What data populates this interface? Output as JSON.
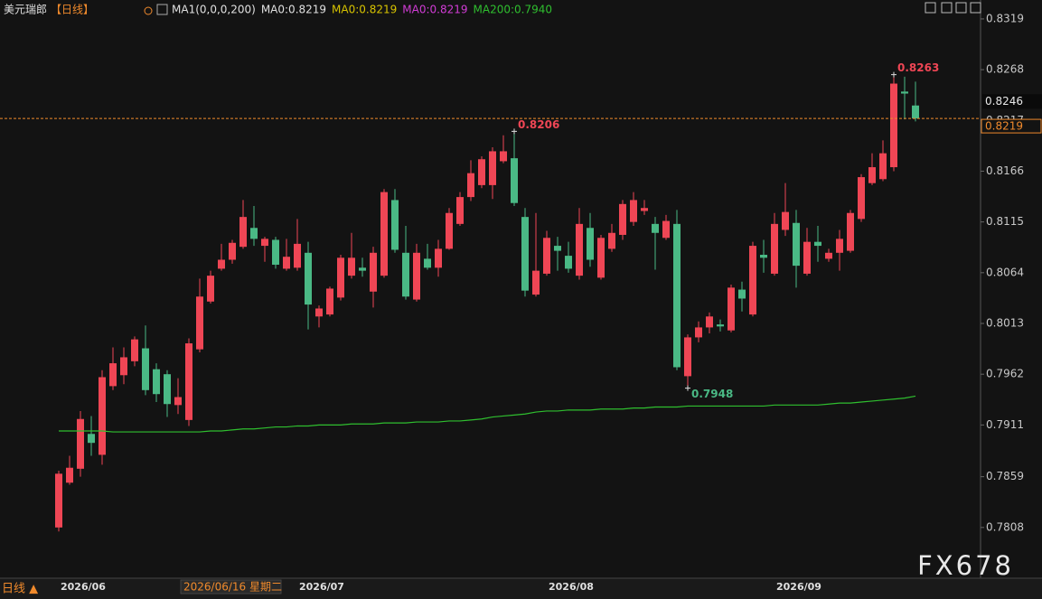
{
  "chart_data": {
    "type": "candlestick",
    "title": "美元瑞郎",
    "period": "【日线】",
    "legend": [
      {
        "text": "MA1(0,0,0,200)",
        "color": "#e0e0e0"
      },
      {
        "text": "MA0:0.8219",
        "color": "#e0e0e0"
      },
      {
        "text": "MA0:0.8219",
        "color": "#d8c400"
      },
      {
        "text": "MA0:0.8219",
        "color": "#d23cd6"
      }
    ],
    "categories": [
      "2026/06",
      null,
      null,
      null,
      null,
      null,
      null,
      null,
      null,
      null,
      null,
      null,
      null,
      null,
      null,
      null,
      null,
      null,
      null,
      null,
      null,
      null,
      "2026/07",
      null,
      null,
      null,
      null,
      null,
      null,
      null,
      null,
      null,
      null,
      null,
      null,
      null,
      null,
      null,
      null,
      null,
      null,
      null,
      null,
      null,
      null,
      "2026/08",
      null,
      null,
      null,
      null,
      null,
      null,
      null,
      null,
      null,
      null,
      null,
      null,
      null,
      null,
      null,
      null,
      null,
      null,
      null,
      null,
      "2026/09",
      null,
      null,
      null,
      null,
      null,
      null,
      null,
      null,
      null,
      null,
      null,
      null,
      null
    ],
    "open": [
      0.7808,
      0.7853,
      0.7867,
      0.7902,
      0.7881,
      0.795,
      0.7961,
      0.7975,
      0.7988,
      0.7967,
      0.7962,
      0.7931,
      0.7916,
      0.7987,
      0.8035,
      0.8068,
      0.8077,
      0.809,
      0.8109,
      0.8091,
      0.8097,
      0.8068,
      0.8069,
      0.8084,
      0.802,
      0.8022,
      0.8039,
      0.8061,
      0.8069,
      0.8045,
      0.8061,
      0.8137,
      0.8084,
      0.8037,
      0.8078,
      0.8069,
      0.8088,
      0.8113,
      0.814,
      0.8152,
      0.8152,
      0.8176,
      0.8179,
      0.812,
      0.8042,
      0.8063,
      0.8091,
      0.8081,
      0.8061,
      0.8109,
      0.8059,
      0.8088,
      0.8102,
      0.8115,
      0.8126,
      0.8113,
      0.8099,
      0.8113,
      0.796,
      0.7999,
      0.8009,
      0.8012,
      0.8006,
      0.8047,
      0.8022,
      0.8082,
      0.8063,
      0.8107,
      0.8114,
      0.8063,
      0.8095,
      0.8078,
      0.8084,
      0.8086,
      0.8118,
      0.8154,
      0.8158,
      0.817,
      0.8246,
      0.8232
    ],
    "high": [
      0.7865,
      0.788,
      0.7925,
      0.792,
      0.7966,
      0.7989,
      0.7989,
      0.8,
      0.8011,
      0.7973,
      0.7966,
      0.7958,
      0.7998,
      0.8058,
      0.8066,
      0.8093,
      0.8097,
      0.8137,
      0.8131,
      0.81,
      0.81,
      0.8098,
      0.8118,
      0.8095,
      0.8031,
      0.805,
      0.8082,
      0.8104,
      0.8079,
      0.809,
      0.8148,
      0.8148,
      0.8111,
      0.8093,
      0.8093,
      0.8097,
      0.8129,
      0.8145,
      0.8177,
      0.8181,
      0.819,
      0.8202,
      0.8206,
      0.8129,
      0.8124,
      0.8106,
      0.81,
      0.8095,
      0.8129,
      0.8124,
      0.8102,
      0.8113,
      0.8137,
      0.8145,
      0.8137,
      0.812,
      0.8122,
      0.8127,
      0.8002,
      0.8015,
      0.8024,
      0.8017,
      0.8052,
      0.8055,
      0.8095,
      0.8097,
      0.8124,
      0.8154,
      0.8127,
      0.8109,
      0.8111,
      0.8088,
      0.8107,
      0.8127,
      0.8163,
      0.8184,
      0.8197,
      0.8263,
      0.8261,
      0.8256
    ],
    "low": [
      0.7804,
      0.7851,
      0.7859,
      0.788,
      0.7871,
      0.7946,
      0.7952,
      0.797,
      0.7941,
      0.7934,
      0.7919,
      0.7922,
      0.791,
      0.7984,
      0.8033,
      0.8066,
      0.8073,
      0.8088,
      0.8091,
      0.8075,
      0.8068,
      0.8066,
      0.8066,
      0.8007,
      0.8009,
      0.802,
      0.8036,
      0.8058,
      0.806,
      0.8029,
      0.8059,
      0.8084,
      0.8037,
      0.8035,
      0.8067,
      0.806,
      0.8087,
      0.8111,
      0.8136,
      0.8149,
      0.8138,
      0.8174,
      0.8131,
      0.804,
      0.804,
      0.8061,
      0.8066,
      0.8064,
      0.8057,
      0.807,
      0.8057,
      0.8085,
      0.8097,
      0.8111,
      0.8122,
      0.8067,
      0.8097,
      0.7966,
      0.7948,
      0.7994,
      0.8003,
      0.8005,
      0.8004,
      0.8025,
      0.802,
      0.8064,
      0.8061,
      0.8101,
      0.8049,
      0.8061,
      0.8075,
      0.8075,
      0.8066,
      0.8084,
      0.8115,
      0.8152,
      0.8156,
      0.8166,
      0.8218,
      0.8216
    ],
    "close": [
      0.7862,
      0.7868,
      0.7917,
      0.7893,
      0.7959,
      0.7973,
      0.7979,
      0.7997,
      0.7946,
      0.7942,
      0.7932,
      0.7939,
      0.7993,
      0.804,
      0.8061,
      0.8077,
      0.8094,
      0.812,
      0.8098,
      0.8098,
      0.8072,
      0.808,
      0.8093,
      0.8032,
      0.8028,
      0.8048,
      0.8079,
      0.8079,
      0.8066,
      0.8084,
      0.8145,
      0.8087,
      0.804,
      0.8084,
      0.8069,
      0.8088,
      0.8124,
      0.814,
      0.8164,
      0.8178,
      0.8186,
      0.8186,
      0.8134,
      0.8046,
      0.8066,
      0.8099,
      0.8086,
      0.8068,
      0.8113,
      0.8077,
      0.8099,
      0.8104,
      0.8133,
      0.8137,
      0.8129,
      0.8104,
      0.8116,
      0.7969,
      0.7999,
      0.8009,
      0.802,
      0.801,
      0.8049,
      0.8038,
      0.8091,
      0.8079,
      0.8113,
      0.8125,
      0.8071,
      0.8095,
      0.8091,
      0.8084,
      0.8098,
      0.8124,
      0.816,
      0.817,
      0.8184,
      0.8254,
      0.8244,
      0.8219
    ],
    "up_color": "#ef4655",
    "down_color": "#4ab985",
    "series": [
      {
        "name": "MA200:0.7940",
        "color": "#2fbf2f",
        "values": [
          0.7905,
          0.7905,
          0.7905,
          0.7905,
          0.7905,
          0.7904,
          0.7904,
          0.7904,
          0.7904,
          0.7904,
          0.7904,
          0.7904,
          0.7904,
          0.7904,
          0.7905,
          0.7905,
          0.7906,
          0.7907,
          0.7907,
          0.7908,
          0.7909,
          0.7909,
          0.791,
          0.791,
          0.7911,
          0.7911,
          0.7911,
          0.7912,
          0.7912,
          0.7912,
          0.7913,
          0.7913,
          0.7913,
          0.7914,
          0.7914,
          0.7914,
          0.7915,
          0.7915,
          0.7916,
          0.7917,
          0.7919,
          0.792,
          0.7921,
          0.7922,
          0.7924,
          0.7925,
          0.7925,
          0.7926,
          0.7926,
          0.7926,
          0.7927,
          0.7927,
          0.7927,
          0.7928,
          0.7928,
          0.7929,
          0.7929,
          0.7929,
          0.793,
          0.793,
          0.793,
          0.793,
          0.793,
          0.793,
          0.793,
          0.793,
          0.7931,
          0.7931,
          0.7931,
          0.7931,
          0.7931,
          0.7932,
          0.7933,
          0.7933,
          0.7934,
          0.7935,
          0.7936,
          0.7937,
          0.7938,
          0.794
        ]
      }
    ],
    "ylim": [
      0.7757,
      0.8338
    ],
    "yticks": [
      0.8319,
      0.8268,
      0.8217,
      0.8166,
      0.8115,
      0.8064,
      0.8013,
      0.7962,
      0.7911,
      0.7859,
      0.7808
    ],
    "last_price": 0.8219,
    "price_labels": [
      0.8246
    ],
    "annotations": [
      0.8263,
      0.8206,
      0.7948
    ],
    "crosshair_label": "2026/06/16 星期二",
    "period_switch": "日线 ▲",
    "watermark": "FX678"
  }
}
